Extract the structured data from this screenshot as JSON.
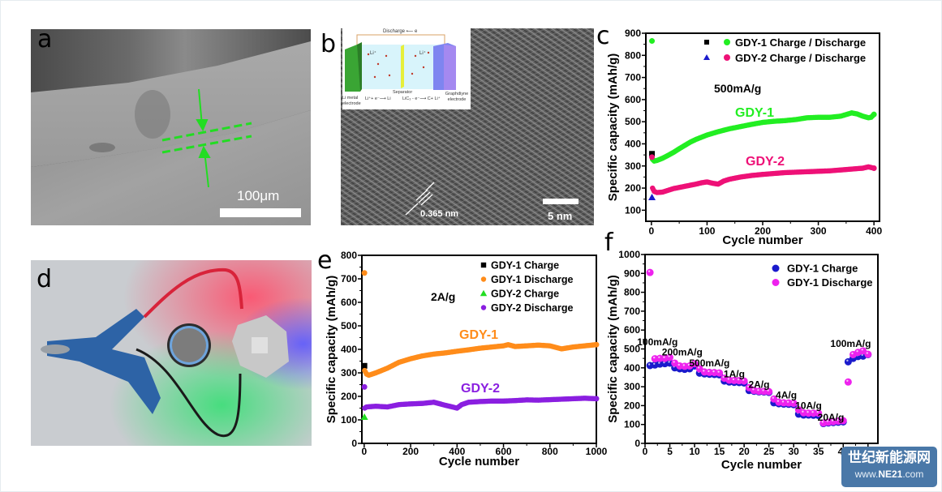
{
  "panels": {
    "a": {
      "letter": "a",
      "type": "SEM image",
      "scale_bar": "100μm"
    },
    "b": {
      "letter": "b",
      "type": "HRTEM image",
      "scale_bar": "5 nm",
      "lattice_spacing": "0.365 nm",
      "inset": {
        "title": "Discharge",
        "electron": "e",
        "li_ion": "Li⁺",
        "left_electrode": "Li metal electrode",
        "left_reaction": "Li⁺+ e⁻⟶ Li",
        "separator": "Separator",
        "right_reaction": "LiC₃ - e⁻⟶ C+ Li⁺",
        "right_electrode": "Graphdiyne electrode"
      }
    },
    "d": {
      "letter": "d",
      "type": "Photo: coin cell lighting LEDs"
    },
    "c": {
      "letter": "c"
    },
    "e": {
      "letter": "e"
    },
    "f": {
      "letter": "f"
    }
  },
  "chart_data": [
    {
      "id": "c",
      "type": "scatter",
      "title": "",
      "annotation": "500mA/g",
      "series_labels": [
        {
          "text": "GDY-1",
          "color": "#22ee22"
        },
        {
          "text": "GDY-2",
          "color": "#ee1177"
        }
      ],
      "xlabel": "Cycle number",
      "ylabel": "Specific capacity (mAh/g)",
      "xlim": [
        -10,
        410
      ],
      "ylim": [
        50,
        900
      ],
      "xticks": [
        0,
        100,
        200,
        300,
        400
      ],
      "yticks": [
        100,
        200,
        300,
        400,
        500,
        600,
        700,
        800,
        900
      ],
      "legend": {
        "placement": "top-right",
        "entries": [
          {
            "text": "GDY-1 Charge / Discharge",
            "markers": [
              {
                "shape": "square",
                "color": "#000000"
              },
              {
                "shape": "circle",
                "color": "#22ee22"
              }
            ]
          },
          {
            "text": "GDY-2 Charge / Discharge",
            "markers": [
              {
                "shape": "triangle",
                "color": "#1a1acc"
              },
              {
                "shape": "circle",
                "color": "#ee1177"
              }
            ]
          }
        ]
      },
      "series": [
        {
          "name": "GDY-1 Charge",
          "color": "#000000",
          "marker": "square",
          "x": [
            1
          ],
          "y": [
            355
          ]
        },
        {
          "name": "GDY-1 Discharge",
          "color": "#22ee22",
          "marker": "circle",
          "x": [
            1,
            2,
            5,
            10,
            20,
            30,
            40,
            50,
            60,
            70,
            80,
            90,
            100,
            120,
            140,
            160,
            180,
            200,
            220,
            240,
            260,
            280,
            300,
            320,
            340,
            360,
            370,
            380,
            390,
            395,
            400
          ],
          "y": [
            865,
            330,
            322,
            325,
            335,
            348,
            362,
            378,
            393,
            408,
            420,
            430,
            440,
            455,
            468,
            478,
            488,
            497,
            502,
            505,
            510,
            518,
            520,
            520,
            525,
            540,
            535,
            525,
            518,
            520,
            533
          ]
        },
        {
          "name": "GDY-2 Charge",
          "color": "#1a1acc",
          "marker": "triangle",
          "x": [
            1
          ],
          "y": [
            158
          ]
        },
        {
          "name": "GDY-2 Discharge",
          "color": "#ee1177",
          "marker": "circle",
          "x": [
            1,
            2,
            5,
            10,
            20,
            30,
            40,
            50,
            60,
            70,
            80,
            90,
            100,
            110,
            120,
            130,
            140,
            160,
            180,
            200,
            220,
            240,
            260,
            280,
            300,
            320,
            340,
            360,
            380,
            390,
            400
          ],
          "y": [
            340,
            200,
            185,
            180,
            182,
            190,
            198,
            203,
            208,
            213,
            218,
            224,
            228,
            222,
            218,
            232,
            240,
            250,
            257,
            262,
            266,
            270,
            272,
            274,
            276,
            278,
            282,
            286,
            290,
            296,
            290
          ]
        }
      ]
    },
    {
      "id": "e",
      "type": "scatter",
      "title": "",
      "annotation": "2A/g",
      "series_labels": [
        {
          "text": "GDY-1",
          "color": "#ff8c1a"
        },
        {
          "text": "GDY-2",
          "color": "#8a1fe0"
        }
      ],
      "xlabel": "Cycle number",
      "ylabel": "Specific capacity (mAh/g)",
      "xlim": [
        -10,
        1000
      ],
      "ylim": [
        0,
        800
      ],
      "xticks": [
        0,
        200,
        400,
        600,
        800,
        1000
      ],
      "yticks": [
        0,
        100,
        200,
        300,
        400,
        500,
        600,
        700,
        800
      ],
      "legend": {
        "placement": "top-right",
        "entries": [
          {
            "text": "GDY-1 Charge",
            "marker": "square",
            "color": "#000000"
          },
          {
            "text": "GDY-1 Discharge",
            "marker": "circle",
            "color": "#ff8c1a"
          },
          {
            "text": "GDY-2 Charge",
            "marker": "triangle",
            "color": "#22dd22"
          },
          {
            "text": "GDY-2 Discharge",
            "marker": "circle",
            "color": "#8a1fe0"
          }
        ]
      },
      "series": [
        {
          "name": "GDY-1 Charge",
          "color": "#000000",
          "marker": "square",
          "x": [
            1
          ],
          "y": [
            330
          ]
        },
        {
          "name": "GDY-1 Discharge",
          "color": "#ff8c1a",
          "marker": "circle",
          "x": [
            1,
            2,
            10,
            20,
            50,
            100,
            150,
            200,
            250,
            300,
            350,
            400,
            450,
            500,
            550,
            600,
            620,
            650,
            700,
            750,
            800,
            850,
            900,
            950,
            1000
          ],
          "y": [
            725,
            310,
            295,
            290,
            300,
            320,
            345,
            360,
            372,
            380,
            385,
            392,
            398,
            405,
            410,
            415,
            420,
            412,
            415,
            418,
            415,
            402,
            410,
            415,
            420
          ]
        },
        {
          "name": "GDY-2 Charge",
          "color": "#22dd22",
          "marker": "triangle",
          "x": [
            1
          ],
          "y": [
            112
          ]
        },
        {
          "name": "GDY-2 Discharge",
          "color": "#8a1fe0",
          "marker": "circle",
          "x": [
            1,
            2,
            10,
            50,
            100,
            150,
            200,
            250,
            300,
            350,
            380,
            400,
            420,
            450,
            500,
            550,
            600,
            650,
            700,
            750,
            800,
            850,
            900,
            950,
            1000
          ],
          "y": [
            240,
            150,
            155,
            158,
            155,
            165,
            168,
            170,
            175,
            162,
            155,
            150,
            165,
            175,
            178,
            180,
            180,
            182,
            185,
            184,
            186,
            188,
            190,
            192,
            190
          ]
        }
      ]
    },
    {
      "id": "f",
      "type": "scatter",
      "title": "",
      "xlabel": "Cycle number",
      "ylabel": "Specific capacity (mAh/g)",
      "xlim": [
        0,
        47
      ],
      "ylim": [
        0,
        1000
      ],
      "xticks": [
        0,
        5,
        10,
        15,
        20,
        25,
        30,
        35,
        40,
        45
      ],
      "yticks": [
        0,
        100,
        200,
        300,
        400,
        500,
        600,
        700,
        800,
        900,
        1000
      ],
      "legend": {
        "placement": "top-right",
        "entries": [
          {
            "text": "GDY-1 Charge",
            "marker": "circle",
            "color": "#1a1acc"
          },
          {
            "text": "GDY-1 Discharge",
            "marker": "circle",
            "color": "#ee22ee"
          }
        ]
      },
      "rate_labels": [
        {
          "text": "100mA/g",
          "x": 2.5,
          "y": 520
        },
        {
          "text": "200mA/g",
          "x": 7.5,
          "y": 465
        },
        {
          "text": "500mA/g",
          "x": 13,
          "y": 408
        },
        {
          "text": "1A/g",
          "x": 18,
          "y": 350
        },
        {
          "text": "2A/g",
          "x": 23,
          "y": 295
        },
        {
          "text": "4A/g",
          "x": 28.5,
          "y": 238
        },
        {
          "text": "10A/g",
          "x": 33,
          "y": 182
        },
        {
          "text": "20A/g",
          "x": 37.5,
          "y": 120
        },
        {
          "text": "100mA/g",
          "x": 41.5,
          "y": 510
        }
      ],
      "series": [
        {
          "name": "GDY-1 Charge",
          "color": "#1a1acc",
          "marker": "circle",
          "x": [
            1,
            2,
            3,
            4,
            5,
            6,
            7,
            8,
            9,
            10,
            11,
            12,
            13,
            14,
            15,
            16,
            17,
            18,
            19,
            20,
            21,
            22,
            23,
            24,
            25,
            26,
            27,
            28,
            29,
            30,
            31,
            32,
            33,
            34,
            35,
            36,
            37,
            38,
            39,
            40,
            41,
            42,
            43,
            44,
            45
          ],
          "y": [
            412,
            415,
            420,
            422,
            425,
            400,
            395,
            392,
            395,
            410,
            372,
            368,
            366,
            365,
            363,
            330,
            325,
            323,
            322,
            320,
            280,
            276,
            273,
            272,
            270,
            215,
            210,
            208,
            207,
            205,
            155,
            150,
            150,
            149,
            148,
            105,
            108,
            110,
            112,
            114,
            432,
            450,
            460,
            462,
            470
          ]
        },
        {
          "name": "GDY-1 Discharge",
          "color": "#ee22ee",
          "marker": "circle",
          "x": [
            1,
            2,
            3,
            4,
            5,
            6,
            7,
            8,
            9,
            10,
            11,
            12,
            13,
            14,
            15,
            16,
            17,
            18,
            19,
            20,
            21,
            22,
            23,
            24,
            25,
            26,
            27,
            28,
            29,
            30,
            31,
            32,
            33,
            34,
            35,
            36,
            37,
            38,
            39,
            40,
            41,
            42,
            43,
            44,
            45
          ],
          "y": [
            905,
            448,
            450,
            450,
            455,
            425,
            410,
            408,
            410,
            422,
            395,
            378,
            376,
            375,
            373,
            345,
            335,
            333,
            332,
            330,
            295,
            280,
            276,
            275,
            274,
            235,
            218,
            215,
            214,
            212,
            178,
            162,
            160,
            160,
            160,
            108,
            112,
            115,
            118,
            120,
            325,
            470,
            482,
            490,
            472
          ]
        }
      ]
    }
  ],
  "watermark": {
    "cn": "世纪新能源网",
    "url_prefix": "www.",
    "url_brand": "NE21",
    "url_suffix": ".com"
  }
}
